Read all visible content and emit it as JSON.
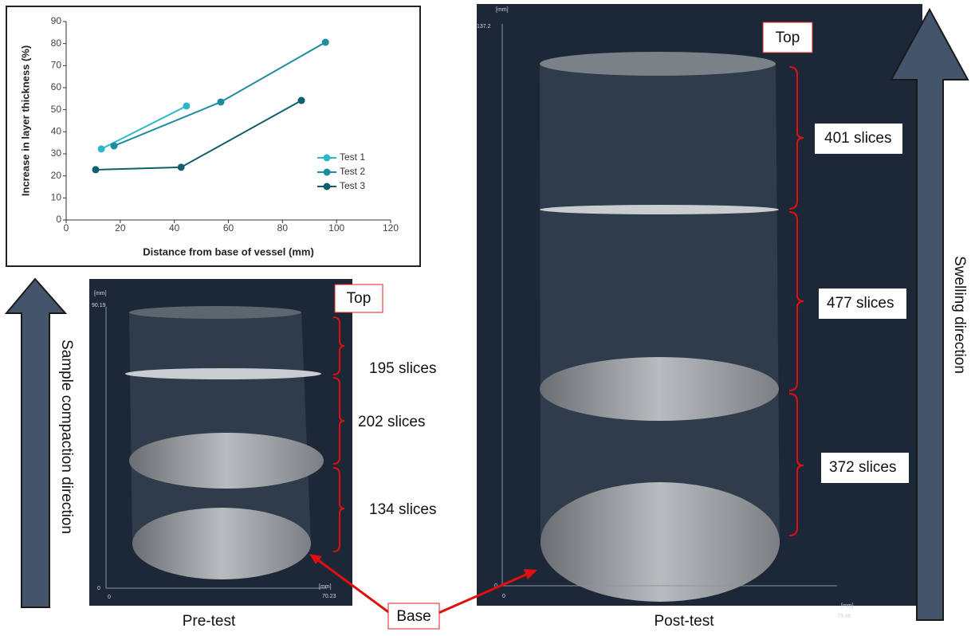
{
  "chart_data": {
    "type": "line",
    "xlabel": "Distance from base of vessel (mm)",
    "ylabel": "Increase in layer thickness (%)",
    "xlim": [
      0,
      120
    ],
    "ylim": [
      0,
      90
    ],
    "xticks": [
      0,
      20,
      40,
      60,
      80,
      100,
      120
    ],
    "yticks": [
      0,
      10,
      20,
      30,
      40,
      50,
      60,
      70,
      80,
      90
    ],
    "legend": "lower right",
    "series": [
      {
        "name": "Test 1",
        "color": "#2db6c9",
        "x": [
          13,
          44.5
        ],
        "values": [
          32.2,
          51.7
        ]
      },
      {
        "name": "Test 2",
        "color": "#1c8c9e",
        "x": [
          17.7,
          57.2,
          95.9
        ],
        "values": [
          33.6,
          53.5,
          80.6
        ]
      },
      {
        "name": "Test 3",
        "color": "#0f5f6c",
        "x": [
          10.9,
          42.5,
          87
        ],
        "values": [
          22.8,
          23.9,
          54.2
        ]
      }
    ]
  },
  "pre_test": {
    "caption": "Pre-test",
    "top_label": "Top",
    "y_unit": "[mm]",
    "y_max_label": 90.19,
    "y_origin_label": 0,
    "x_origin_label": 0,
    "x_unit": "[mm]",
    "x_max_label": 70.23,
    "slices": [
      "195 slices",
      "202 slices",
      "134 slices"
    ]
  },
  "post_test": {
    "caption": "Post-test",
    "top_label": "Top",
    "y_unit": "[mm]",
    "y_max_label": 137.2,
    "y_origin_label": 0,
    "x_origin_label": 0,
    "x_unit": "[mm]",
    "x_max_label": 79.46,
    "slices": [
      "401 slices",
      "477 slices",
      "372 slices"
    ]
  },
  "base_label": "Base",
  "left_arrow_label": "Sample compaction direction",
  "right_arrow_label": "Swelling direction"
}
